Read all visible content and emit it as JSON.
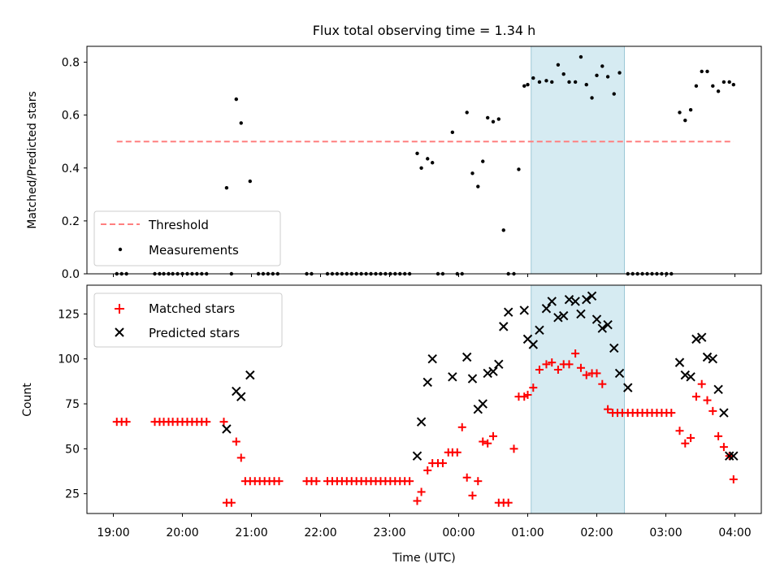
{
  "chart_data": [
    {
      "type": "scatter",
      "title": "Flux total observing time = 1.34 h",
      "ylabel": "Matched/Predicted stars",
      "xlabel": "",
      "xlim": [
        19.0,
        28.0
      ],
      "ylim": [
        0,
        0.86
      ],
      "xtick_labels": [
        "19:00",
        "20:00",
        "21:00",
        "22:00",
        "23:00",
        "00:00",
        "01:00",
        "02:00",
        "03:00",
        "04:00"
      ],
      "ytick_values": [
        0.0,
        0.2,
        0.4,
        0.6,
        0.8
      ],
      "ytick_labels": [
        "0.0",
        "0.2",
        "0.4",
        "0.6",
        "0.8"
      ],
      "grid": false,
      "legend_position": "lower-left",
      "highlight_span": [
        25.05,
        26.4
      ],
      "threshold": {
        "name": "Threshold",
        "y": 0.5,
        "x": [
          19.05,
          27.98
        ],
        "color": "#ff7f7f",
        "style": "dashed"
      },
      "series": [
        {
          "name": "Measurements",
          "color": "#000000",
          "marker": "dot",
          "x": [
            19.05,
            19.12,
            19.19,
            19.6,
            19.67,
            19.73,
            19.8,
            19.86,
            19.93,
            20.0,
            20.07,
            20.14,
            20.21,
            20.28,
            20.35,
            20.64,
            20.71,
            20.78,
            20.85,
            20.98,
            21.1,
            21.17,
            21.24,
            21.31,
            21.38,
            21.8,
            21.87,
            22.1,
            22.17,
            22.24,
            22.31,
            22.38,
            22.45,
            22.52,
            22.59,
            22.66,
            22.73,
            22.8,
            22.87,
            22.94,
            23.01,
            23.08,
            23.15,
            23.22,
            23.29,
            23.4,
            23.46,
            23.55,
            23.62,
            23.7,
            23.77,
            23.91,
            23.98,
            24.05,
            24.12,
            24.2,
            24.28,
            24.35,
            24.42,
            24.5,
            24.58,
            24.65,
            24.72,
            24.8,
            24.87,
            24.95,
            25.0,
            25.08,
            25.17,
            25.27,
            25.35,
            25.44,
            25.52,
            25.6,
            25.69,
            25.77,
            25.85,
            25.93,
            26.0,
            26.08,
            26.16,
            26.25,
            26.33,
            26.45,
            26.52,
            26.59,
            26.66,
            26.73,
            26.8,
            26.87,
            26.94,
            27.01,
            27.08,
            27.2,
            27.28,
            27.36,
            27.44,
            27.52,
            27.6,
            27.68,
            27.76,
            27.84,
            27.92,
            27.98
          ],
          "y": [
            0,
            0,
            0,
            0,
            0,
            0,
            0,
            0,
            0,
            0,
            0,
            0,
            0,
            0,
            0,
            0.325,
            0,
            0.66,
            0.57,
            0.35,
            0,
            0,
            0,
            0,
            0,
            0,
            0,
            0,
            0,
            0,
            0,
            0,
            0,
            0,
            0,
            0,
            0,
            0,
            0,
            0,
            0,
            0,
            0,
            0,
            0,
            0.455,
            0.4,
            0.435,
            0.42,
            0,
            0,
            0.535,
            0,
            0,
            0.61,
            0.38,
            0.33,
            0.425,
            0.59,
            0.575,
            0.585,
            0.165,
            0,
            0,
            0.395,
            0.71,
            0.715,
            0.74,
            0.725,
            0.73,
            0.725,
            0.79,
            0.755,
            0.725,
            0.725,
            0.82,
            0.715,
            0.665,
            0.75,
            0.785,
            0.745,
            0.68,
            0.76,
            0,
            0,
            0,
            0,
            0,
            0,
            0,
            0,
            0,
            0,
            0.61,
            0.58,
            0.62,
            0.71,
            0.765,
            0.765,
            0.71,
            0.69,
            0.725,
            0.725,
            0.715
          ]
        }
      ]
    },
    {
      "type": "scatter",
      "title": "",
      "ylabel": "Count",
      "xlabel": "Time (UTC)",
      "xlim": [
        19.0,
        28.0
      ],
      "ylim": [
        14,
        141
      ],
      "xtick_labels": [
        "19:00",
        "20:00",
        "21:00",
        "22:00",
        "23:00",
        "00:00",
        "01:00",
        "02:00",
        "03:00",
        "04:00"
      ],
      "ytick_values": [
        25,
        50,
        75,
        100,
        125
      ],
      "ytick_labels": [
        "25",
        "50",
        "75",
        "100",
        "125"
      ],
      "grid": false,
      "legend_position": "upper-left",
      "highlight_span": [
        25.05,
        26.4
      ],
      "series": [
        {
          "name": "Matched stars",
          "color": "#ff0000",
          "marker": "plus",
          "x": [
            19.05,
            19.12,
            19.19,
            19.6,
            19.67,
            19.73,
            19.8,
            19.86,
            19.93,
            20.0,
            20.07,
            20.14,
            20.21,
            20.28,
            20.35,
            20.6,
            20.64,
            20.71,
            20.78,
            20.85,
            20.91,
            20.98,
            21.05,
            21.12,
            21.19,
            21.26,
            21.33,
            21.4,
            21.8,
            21.87,
            21.94,
            22.1,
            22.17,
            22.24,
            22.31,
            22.38,
            22.45,
            22.52,
            22.59,
            22.66,
            22.73,
            22.8,
            22.87,
            22.94,
            23.01,
            23.08,
            23.15,
            23.22,
            23.29,
            23.4,
            23.46,
            23.55,
            23.62,
            23.7,
            23.77,
            23.85,
            23.91,
            23.98,
            24.05,
            24.12,
            24.2,
            24.28,
            24.35,
            24.42,
            24.5,
            24.58,
            24.65,
            24.72,
            24.8,
            24.87,
            24.95,
            25.0,
            25.08,
            25.17,
            25.27,
            25.35,
            25.44,
            25.52,
            25.6,
            25.69,
            25.77,
            25.85,
            25.93,
            26.0,
            26.08,
            26.16,
            26.23,
            26.3,
            26.37,
            26.45,
            26.52,
            26.59,
            26.66,
            26.73,
            26.8,
            26.87,
            26.94,
            27.01,
            27.08,
            27.2,
            27.28,
            27.36,
            27.44,
            27.52,
            27.6,
            27.68,
            27.76,
            27.84,
            27.92,
            27.98
          ],
          "y": [
            65,
            65,
            65,
            65,
            65,
            65,
            65,
            65,
            65,
            65,
            65,
            65,
            65,
            65,
            65,
            65,
            20,
            20,
            54,
            45,
            32,
            32,
            32,
            32,
            32,
            32,
            32,
            32,
            32,
            32,
            32,
            32,
            32,
            32,
            32,
            32,
            32,
            32,
            32,
            32,
            32,
            32,
            32,
            32,
            32,
            32,
            32,
            32,
            32,
            21,
            26,
            38,
            42,
            42,
            42,
            48,
            48,
            48,
            62,
            34,
            24,
            32,
            54,
            53,
            57,
            20,
            20,
            20,
            50,
            79,
            79,
            80,
            84,
            94,
            97,
            98,
            94,
            97,
            97,
            103,
            95,
            91,
            92,
            92,
            86,
            72,
            70,
            70,
            70,
            70,
            70,
            70,
            70,
            70,
            70,
            70,
            70,
            70,
            70,
            60,
            53,
            56,
            79,
            86,
            77,
            71,
            57,
            51,
            46,
            33
          ]
        },
        {
          "name": "Predicted stars",
          "color": "#000000",
          "marker": "x",
          "x": [
            20.64,
            20.78,
            20.85,
            20.98,
            23.4,
            23.46,
            23.55,
            23.62,
            23.91,
            24.12,
            24.2,
            24.28,
            24.35,
            24.42,
            24.5,
            24.58,
            24.65,
            24.72,
            24.95,
            25.0,
            25.08,
            25.17,
            25.27,
            25.35,
            25.44,
            25.52,
            25.6,
            25.69,
            25.77,
            25.85,
            25.93,
            26.0,
            26.08,
            26.16,
            26.25,
            26.33,
            26.45,
            27.2,
            27.28,
            27.36,
            27.44,
            27.52,
            27.6,
            27.68,
            27.76,
            27.84,
            27.92,
            27.98
          ],
          "y": [
            61,
            82,
            79,
            91,
            46,
            65,
            87,
            100,
            90,
            101,
            89,
            72,
            75,
            92,
            93,
            97,
            118,
            126,
            127,
            111,
            108,
            116,
            128,
            132,
            123,
            124,
            133,
            132,
            125,
            133,
            135,
            122,
            117,
            119,
            106,
            92,
            84,
            98,
            91,
            90,
            111,
            112,
            101,
            100,
            83,
            70,
            46,
            46
          ]
        }
      ]
    }
  ]
}
